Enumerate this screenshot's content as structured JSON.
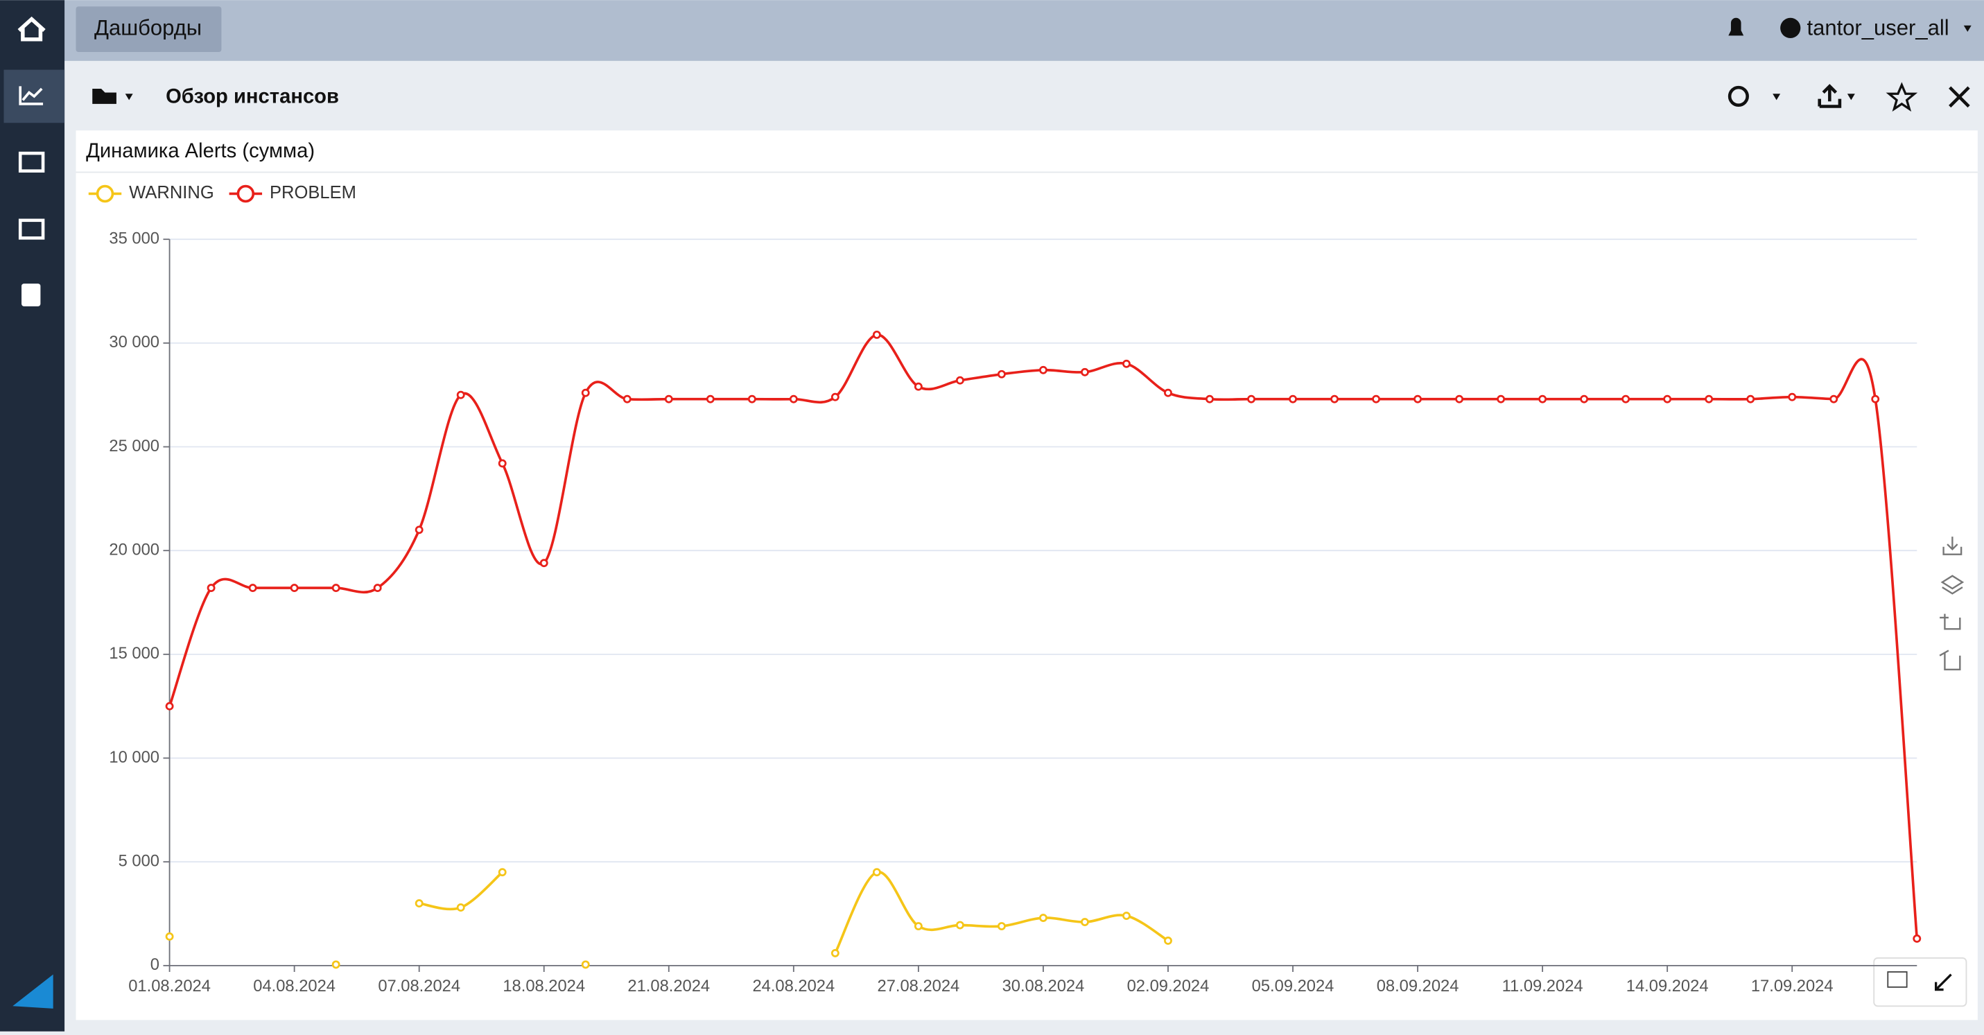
{
  "ui": {
    "nav_button": "Дашборды",
    "user": "tantor_user_all",
    "dashboard_title": "Обзор инстансов"
  },
  "chart_data": {
    "type": "line",
    "title": "Динамика Alerts (сумма)",
    "categories": [
      "01.08.2024",
      null,
      null,
      "04.08.2024",
      null,
      null,
      "07.08.2024",
      null,
      null,
      "18.08.2024",
      null,
      null,
      "21.08.2024",
      null,
      null,
      "24.08.2024",
      null,
      null,
      "27.08.2024",
      null,
      null,
      "30.08.2024",
      null,
      null,
      "02.09.2024",
      null,
      null,
      "05.09.2024",
      null,
      null,
      "08.09.2024",
      null,
      null,
      "11.09.2024",
      null,
      null,
      "14.09.2024",
      null,
      null,
      "17.09.2024",
      null,
      null,
      null
    ],
    "series": [
      {
        "name": "WARNING",
        "color": "#f5c518",
        "values": [
          1400,
          null,
          null,
          null,
          50,
          null,
          3000,
          2800,
          4500,
          null,
          50,
          null,
          null,
          null,
          null,
          null,
          600,
          4500,
          1900,
          1950,
          1900,
          2300,
          2100,
          2400,
          1200,
          null,
          null,
          null,
          null,
          null,
          null,
          null,
          null,
          null,
          null,
          null,
          null,
          null,
          null,
          null,
          null,
          null,
          null
        ]
      },
      {
        "name": "PROBLEM",
        "color": "#e8201a",
        "values": [
          12500,
          18200,
          18200,
          18200,
          18200,
          18200,
          21000,
          27500,
          24200,
          19400,
          27600,
          27300,
          27300,
          27300,
          27300,
          27300,
          27400,
          30400,
          27900,
          28200,
          28500,
          28700,
          28600,
          29000,
          27600,
          27300,
          27300,
          27300,
          27300,
          27300,
          27300,
          27300,
          27300,
          27300,
          27300,
          27300,
          27300,
          27300,
          27300,
          27400,
          27300,
          27300,
          1300
        ]
      }
    ],
    "ylim": [
      0,
      35000
    ],
    "yticks": [
      0,
      {
        "value": 5000,
        "label": "5 000"
      },
      {
        "value": 10000,
        "label": "10 000"
      },
      {
        "value": 15000,
        "label": "15 000"
      },
      {
        "value": 20000,
        "label": "20 000"
      },
      {
        "value": 25000,
        "label": "25 000"
      },
      {
        "value": 30000,
        "label": "30 000"
      },
      {
        "value": 35000,
        "label": "35 000"
      }
    ],
    "grid": true,
    "legend": "top-left",
    "smooth": true
  }
}
